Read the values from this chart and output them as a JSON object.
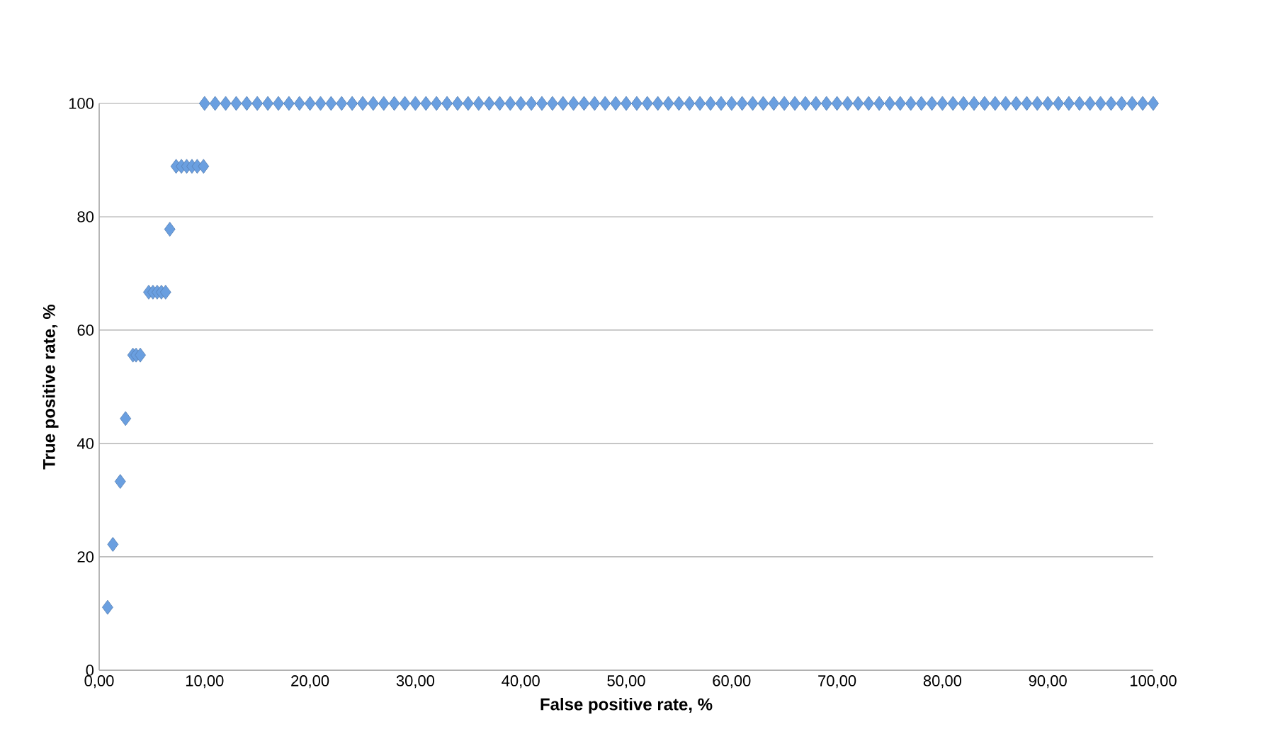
{
  "chart_data": {
    "type": "scatter",
    "xlabel": "False positive rate, %",
    "ylabel": "True positive rate, %",
    "xlim": [
      0,
      100
    ],
    "ylim": [
      0,
      100
    ],
    "xticks": [
      {
        "value": 0,
        "label": "0,00"
      },
      {
        "value": 10,
        "label": "10,00"
      },
      {
        "value": 20,
        "label": "20,00"
      },
      {
        "value": 30,
        "label": "30,00"
      },
      {
        "value": 40,
        "label": "40,00"
      },
      {
        "value": 50,
        "label": "50,00"
      },
      {
        "value": 60,
        "label": "60,00"
      },
      {
        "value": 70,
        "label": "70,00"
      },
      {
        "value": 80,
        "label": "80,00"
      },
      {
        "value": 90,
        "label": "90,00"
      },
      {
        "value": 100,
        "label": "100,00"
      }
    ],
    "yticks": [
      0,
      20,
      40,
      60,
      80,
      100
    ],
    "grid": "y",
    "marker": "diamond",
    "series": [
      {
        "color": "#6a9fe0",
        "x": [
          0.8,
          1.3,
          2.0,
          2.5,
          3.2,
          3.5,
          3.9,
          4.7,
          5.1,
          5.5,
          5.9,
          6.3,
          6.7,
          7.3,
          7.8,
          8.3,
          8.8,
          9.3,
          9.9,
          10,
          11,
          12,
          13,
          14,
          15,
          16,
          17,
          18,
          19,
          20,
          21,
          22,
          23,
          24,
          25,
          26,
          27,
          28,
          29,
          30,
          31,
          32,
          33,
          34,
          35,
          36,
          37,
          38,
          39,
          40,
          41,
          42,
          43,
          44,
          45,
          46,
          47,
          48,
          49,
          50,
          51,
          52,
          53,
          54,
          55,
          56,
          57,
          58,
          59,
          60,
          61,
          62,
          63,
          64,
          65,
          66,
          67,
          68,
          69,
          70,
          71,
          72,
          73,
          74,
          75,
          76,
          77,
          78,
          79,
          80,
          81,
          82,
          83,
          84,
          85,
          86,
          87,
          88,
          89,
          90,
          91,
          92,
          93,
          94,
          95,
          96,
          97,
          98,
          99,
          100
        ],
        "values": [
          11.1,
          22.2,
          33.3,
          44.4,
          55.6,
          55.6,
          55.6,
          66.7,
          66.7,
          66.7,
          66.7,
          66.7,
          77.8,
          88.9,
          88.9,
          88.9,
          88.9,
          88.9,
          88.9,
          100,
          100,
          100,
          100,
          100,
          100,
          100,
          100,
          100,
          100,
          100,
          100,
          100,
          100,
          100,
          100,
          100,
          100,
          100,
          100,
          100,
          100,
          100,
          100,
          100,
          100,
          100,
          100,
          100,
          100,
          100,
          100,
          100,
          100,
          100,
          100,
          100,
          100,
          100,
          100,
          100,
          100,
          100,
          100,
          100,
          100,
          100,
          100,
          100,
          100,
          100,
          100,
          100,
          100,
          100,
          100,
          100,
          100,
          100,
          100,
          100,
          100,
          100,
          100,
          100,
          100,
          100,
          100,
          100,
          100,
          100,
          100,
          100,
          100,
          100,
          100,
          100,
          100,
          100,
          100,
          100,
          100,
          100,
          100,
          100,
          100,
          100,
          100,
          100,
          100,
          100
        ]
      }
    ]
  }
}
